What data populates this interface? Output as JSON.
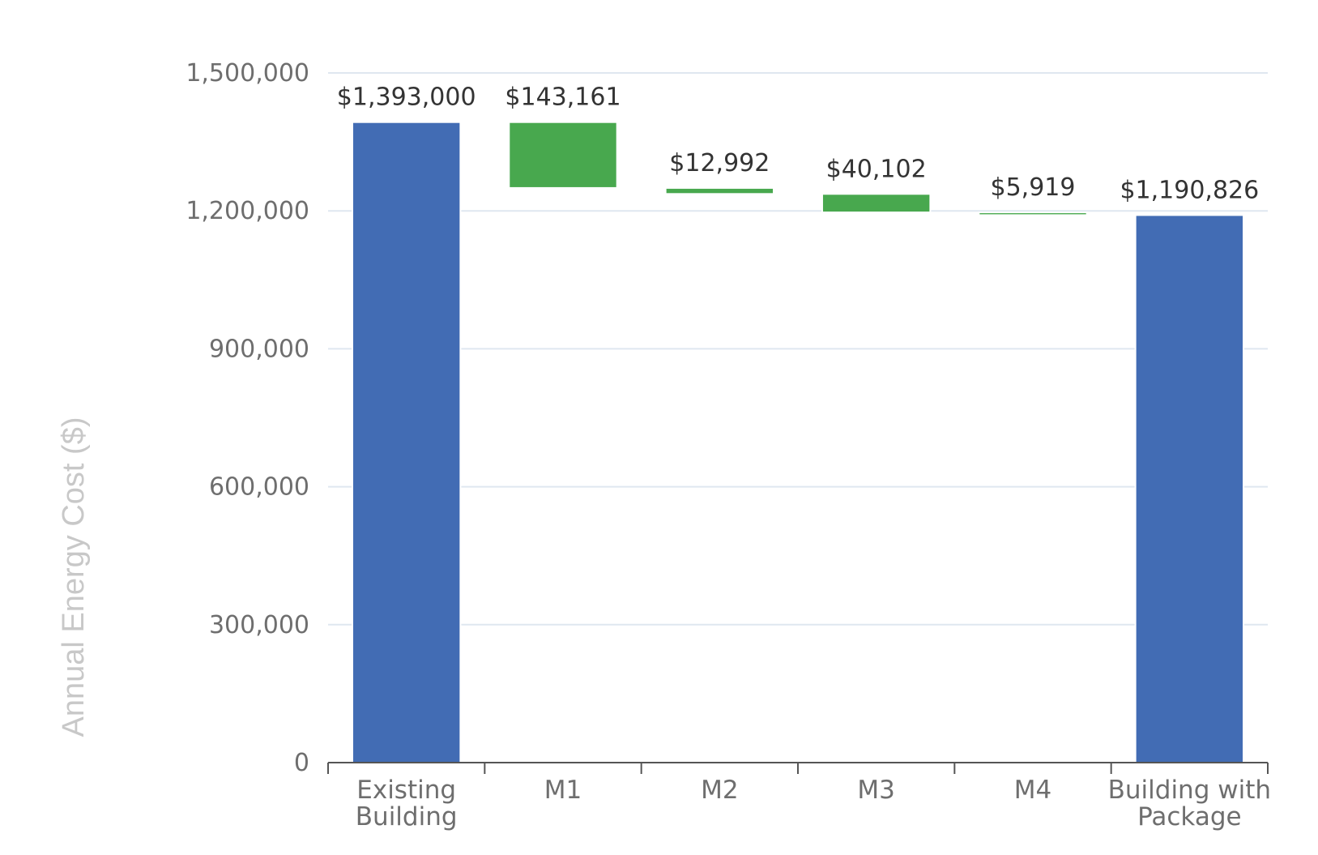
{
  "chart_data": {
    "type": "bar",
    "subtype": "waterfall",
    "categories": [
      [
        "Existing",
        "Building"
      ],
      [
        "M1"
      ],
      [
        "M2"
      ],
      [
        "M3"
      ],
      [
        "M4"
      ],
      [
        "Building with",
        "Package"
      ]
    ],
    "bars": [
      {
        "kind": "total",
        "start": 0,
        "end": 1393000,
        "label": "$1,393,000"
      },
      {
        "kind": "delta",
        "start": 1393000,
        "end": 1249839,
        "label": "$143,161"
      },
      {
        "kind": "delta",
        "start": 1249839,
        "end": 1236847,
        "label": "$12,992"
      },
      {
        "kind": "delta",
        "start": 1236847,
        "end": 1196745,
        "label": "$40,102"
      },
      {
        "kind": "delta",
        "start": 1196745,
        "end": 1190826,
        "label": "$5,919"
      },
      {
        "kind": "total",
        "start": 0,
        "end": 1190826,
        "label": "$1,190,826"
      }
    ],
    "ylabel": "Annual Energy Cost ($)",
    "ylim": [
      0,
      1500000
    ],
    "yticks": [
      0,
      300000,
      600000,
      900000,
      1200000,
      1500000
    ],
    "ytick_labels": [
      "0",
      "300,000",
      "600,000",
      "900,000",
      "1,200,000",
      "1,500,000"
    ],
    "grid": true,
    "colors": {
      "total": "#426cb4",
      "delta": "#48a84e",
      "grid": "#dfe7f0",
      "axis": "#555555"
    }
  }
}
